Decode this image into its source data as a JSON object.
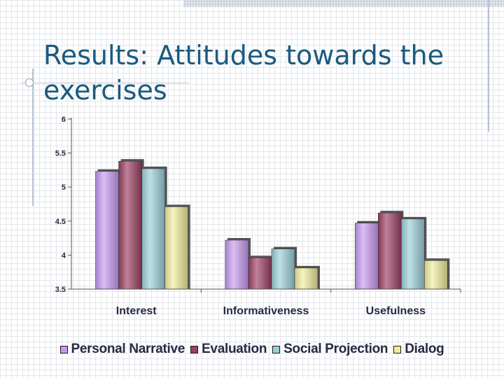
{
  "slide": {
    "title": "Results: Attitudes towards the exercises"
  },
  "chart_data": {
    "type": "bar",
    "categories": [
      "Interest",
      "Informativeness",
      "Usefulness"
    ],
    "series": [
      {
        "name": "Personal Narrative",
        "values": [
          5.23,
          4.22,
          4.47
        ],
        "color": "#c79af0"
      },
      {
        "name": "Evaluation",
        "values": [
          5.38,
          3.96,
          4.62
        ],
        "color": "#9c3f62"
      },
      {
        "name": "Social Projection",
        "values": [
          5.27,
          4.09,
          4.53
        ],
        "color": "#9ccfd8"
      },
      {
        "name": "Dialog",
        "values": [
          4.71,
          3.81,
          3.92
        ],
        "color": "#f0ec9c"
      }
    ],
    "yticks": [
      "6",
      "5.5",
      "5",
      "4.5",
      "4",
      "3.5"
    ],
    "ylim": [
      3.5,
      6
    ],
    "title": "",
    "xlabel": "",
    "ylabel": "",
    "grid": false,
    "legend_position": "bottom"
  }
}
